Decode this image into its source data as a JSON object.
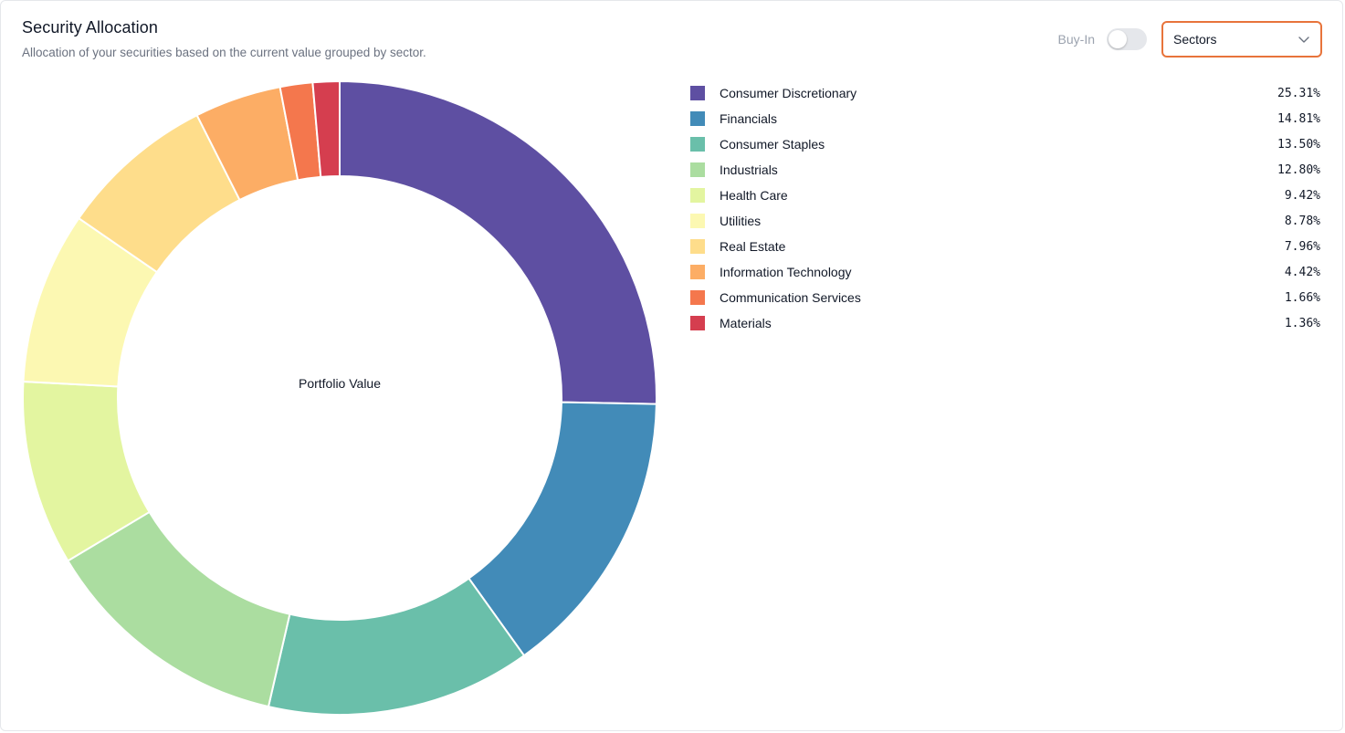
{
  "card": {
    "title": "Security Allocation",
    "subtitle": "Allocation of your securities based on the current value grouped by sector."
  },
  "controls": {
    "toggle_label": "Buy-In",
    "toggle_on": false,
    "select_value": "Sectors",
    "chevron_icon": "chevron-down-icon",
    "accent_color": "#e8743b"
  },
  "chart_data": {
    "type": "pie",
    "variant": "donut",
    "center_label": "Portfolio Value",
    "categories": [
      "Consumer Discretionary",
      "Financials",
      "Consumer Staples",
      "Industrials",
      "Health Care",
      "Utilities",
      "Real Estate",
      "Information Technology",
      "Communication Services",
      "Materials"
    ],
    "values": [
      25.31,
      14.81,
      13.5,
      12.8,
      9.42,
      8.78,
      7.96,
      4.42,
      1.66,
      1.36
    ],
    "value_labels": [
      "25.31%",
      "14.81%",
      "13.50%",
      "12.80%",
      "9.42%",
      "8.78%",
      "7.96%",
      "4.42%",
      "1.66%",
      "1.36%"
    ],
    "colors": [
      "#5e4fa2",
      "#428bb8",
      "#6abfaa",
      "#abdda0",
      "#e3f5a0",
      "#fcf8b2",
      "#fedd8b",
      "#fcad65",
      "#f4774d",
      "#d53e4f"
    ],
    "legend": "right",
    "unit": "%"
  }
}
